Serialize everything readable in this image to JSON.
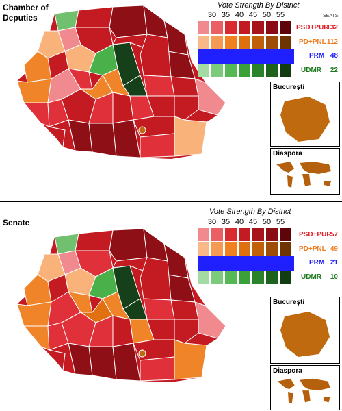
{
  "panels": {
    "chamber": {
      "title": "Chamber of Deputies"
    },
    "senate": {
      "title": "Senate"
    }
  },
  "legend": {
    "title": "Vote Strength By District",
    "ticks": [
      "30",
      "35",
      "40",
      "45",
      "50",
      "55"
    ],
    "seats_header": "SEATS"
  },
  "parties": {
    "psd": {
      "label": "PSD+PUR",
      "color": "#e0202a",
      "shades": [
        "#f08a8e",
        "#ea5f63",
        "#d92a2f",
        "#c21b22",
        "#a8141b",
        "#8a0d14",
        "#5e0509"
      ]
    },
    "pd": {
      "label": "PD+PNL",
      "color": "#f07c20",
      "shades": [
        "#f8b888",
        "#f59a55",
        "#f08020",
        "#df7010",
        "#c26009",
        "#9d4d07",
        "#6e3503"
      ]
    },
    "prm": {
      "label": "PRM",
      "color": "#2020ff"
    },
    "udmr": {
      "label": "UDMR",
      "color": "#1e7a1e",
      "shades": [
        "#a3dba3",
        "#7ccb7c",
        "#55b855",
        "#3aa03a",
        "#2a822a",
        "#1d621d",
        "#123c12"
      ]
    }
  },
  "seats": {
    "chamber": {
      "psd": "132",
      "pd": "112",
      "prm": "48",
      "udmr": "22"
    },
    "senate": {
      "psd": "57",
      "pd": "49",
      "prm": "21",
      "udmr": "10"
    }
  },
  "insets": {
    "bucuresti": {
      "title": "București",
      "color": "#c06a10"
    },
    "diaspora": {
      "title": "Diaspora",
      "color": "#b5600d"
    }
  },
  "map_colors": {
    "border": "#ffffff",
    "psd_light": "#f08a8e",
    "psd_mid": "#e0303a",
    "psd_dark": "#c41a22",
    "psd_deep": "#8e0f16",
    "pd_light": "#f8b27a",
    "pd_mid": "#f08428",
    "pd_dark": "#e07010",
    "udmr_light": "#70c070",
    "udmr_mid": "#4ab04a",
    "udmr_dark": "#16401a"
  }
}
